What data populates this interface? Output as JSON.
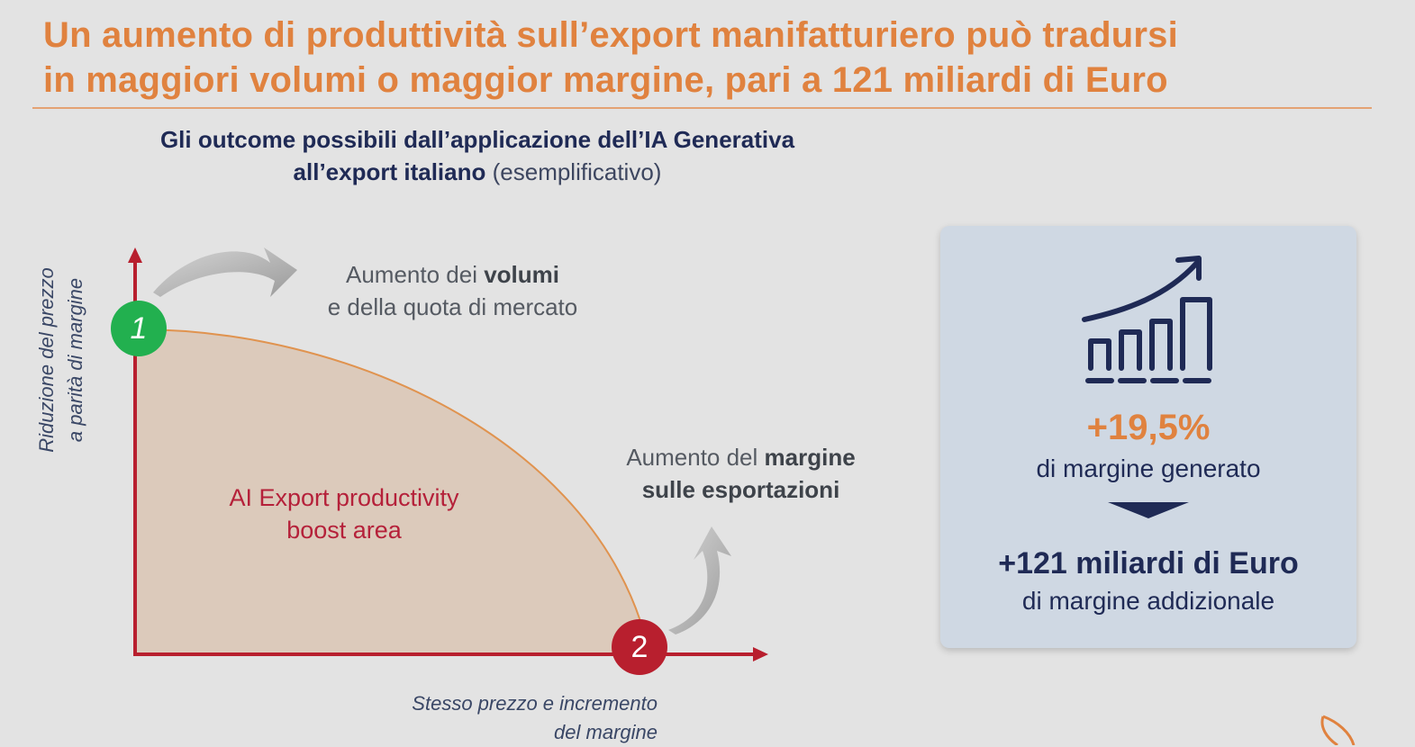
{
  "title": {
    "line1": "Un aumento di produttività sull’export manifatturiero può tradursi",
    "line2": "in maggiori volumi o maggior margine, pari a 121 miliardi di Euro"
  },
  "subtitle": {
    "bold_1": "Gli outcome possibili dall’applicazione dell’IA Generativa",
    "bold_2": "all’export italiano",
    "light": "(esemplificativo)"
  },
  "diagram": {
    "y_axis_label": {
      "line1": "Riduzione del prezzo",
      "line2": "a parità di margine"
    },
    "x_axis_label": {
      "line1": "Stesso prezzo e incremento",
      "line2": "del margine"
    },
    "area_label": {
      "line1": "AI Export productivity",
      "line2": "boost area"
    },
    "marker_1": "1",
    "marker_2": "2",
    "annotation_top": {
      "pre": "Aumento dei",
      "bold": "volumi",
      "line2": "e della quota di mercato"
    },
    "annotation_right": {
      "pre": "Aumento del",
      "bold": "margine",
      "line2": "sulle esportazioni"
    },
    "colors": {
      "axis": "#b81f2e",
      "area_fill": "#dccabb",
      "curve": "#e0934f",
      "marker_1": "#22b04f",
      "marker_2": "#b81f2e"
    }
  },
  "panel": {
    "icon": "growth-bar-chart-icon",
    "percentage": "+19,5%",
    "percentage_label": "di margine generato",
    "amount": "+121 miliardi di Euro",
    "amount_label": "di margine addizionale",
    "colors": {
      "background": "#cfd8e3",
      "accent": "#e0823f",
      "text": "#1f2a55"
    }
  }
}
